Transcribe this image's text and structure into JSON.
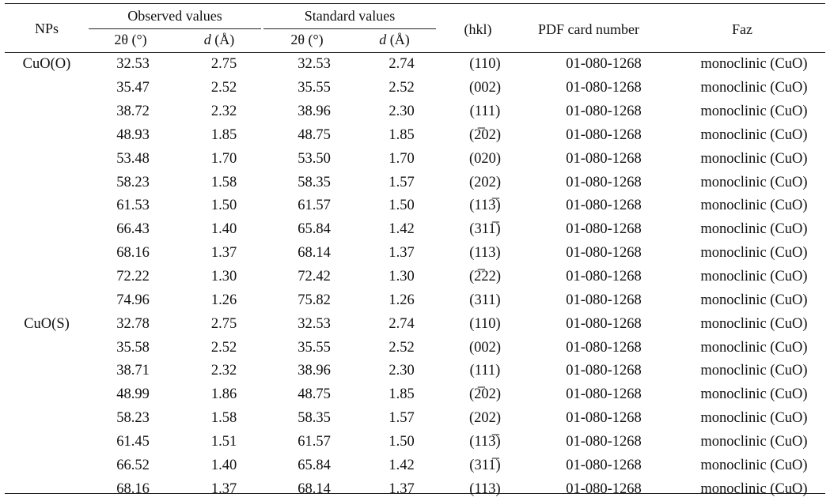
{
  "header": {
    "nps": "NPs",
    "observed": "Observed values",
    "standard": "Standard values",
    "obs_two_theta": "2θ (°)",
    "obs_d_letter": "d",
    "obs_d_unit": " (Å)",
    "std_two_theta": "2θ (°)",
    "std_d_letter": "d",
    "std_d_unit": " (Å)",
    "hkl": "(hkl)",
    "pdf": "PDF card number",
    "faz": "Faz"
  },
  "rows": [
    {
      "np": "CuO(O)",
      "obs_2t": "32.53",
      "obs_d": "2.75",
      "std_2t": "32.53",
      "std_d": "2.74",
      "hkl": "(110)",
      "pdf": "01-080-1268",
      "faz": "monoclinic (CuO)"
    },
    {
      "np": "",
      "obs_2t": "35.47",
      "obs_d": "2.52",
      "std_2t": "35.55",
      "std_d": "2.52",
      "hkl": "(002)",
      "pdf": "01-080-1268",
      "faz": "monoclinic (CuO)"
    },
    {
      "np": "",
      "obs_2t": "38.72",
      "obs_d": "2.32",
      "std_2t": "38.96",
      "std_d": "2.30",
      "hkl": "(111)",
      "pdf": "01-080-1268",
      "faz": "monoclinic (CuO)"
    },
    {
      "np": "",
      "obs_2t": "48.93",
      "obs_d": "1.85",
      "std_2t": "48.75",
      "std_d": "1.85",
      "hkl": "(2̅02)",
      "pdf": "01-080-1268",
      "faz": "monoclinic (CuO)"
    },
    {
      "np": "",
      "obs_2t": "53.48",
      "obs_d": "1.70",
      "std_2t": "53.50",
      "std_d": "1.70",
      "hkl": "(020)",
      "pdf": "01-080-1268",
      "faz": "monoclinic (CuO)"
    },
    {
      "np": "",
      "obs_2t": "58.23",
      "obs_d": "1.58",
      "std_2t": "58.35",
      "std_d": "1.57",
      "hkl": "(202)",
      "pdf": "01-080-1268",
      "faz": "monoclinic (CuO)"
    },
    {
      "np": "",
      "obs_2t": "61.53",
      "obs_d": "1.50",
      "std_2t": "61.57",
      "std_d": "1.50",
      "hkl": "(113̅)",
      "pdf": "01-080-1268",
      "faz": "monoclinic (CuO)"
    },
    {
      "np": "",
      "obs_2t": "66.43",
      "obs_d": "1.40",
      "std_2t": "65.84",
      "std_d": "1.42",
      "hkl": "(311̅)",
      "pdf": "01-080-1268",
      "faz": "monoclinic (CuO)"
    },
    {
      "np": "",
      "obs_2t": "68.16",
      "obs_d": "1.37",
      "std_2t": "68.14",
      "std_d": "1.37",
      "hkl": "(113)",
      "pdf": "01-080-1268",
      "faz": "monoclinic (CuO)"
    },
    {
      "np": "",
      "obs_2t": "72.22",
      "obs_d": "1.30",
      "std_2t": "72.42",
      "std_d": "1.30",
      "hkl": "(2̅22)",
      "pdf": "01-080-1268",
      "faz": "monoclinic (CuO)"
    },
    {
      "np": "",
      "obs_2t": "74.96",
      "obs_d": "1.26",
      "std_2t": "75.82",
      "std_d": "1.26",
      "hkl": "(311)",
      "pdf": "01-080-1268",
      "faz": "monoclinic (CuO)"
    },
    {
      "np": "CuO(S)",
      "obs_2t": "32.78",
      "obs_d": "2.75",
      "std_2t": "32.53",
      "std_d": "2.74",
      "hkl": "(110)",
      "pdf": "01-080-1268",
      "faz": "monoclinic (CuO)"
    },
    {
      "np": "",
      "obs_2t": "35.58",
      "obs_d": "2.52",
      "std_2t": "35.55",
      "std_d": "2.52",
      "hkl": "(002)",
      "pdf": "01-080-1268",
      "faz": "monoclinic (CuO)"
    },
    {
      "np": "",
      "obs_2t": "38.71",
      "obs_d": "2.32",
      "std_2t": "38.96",
      "std_d": "2.30",
      "hkl": "(111)",
      "pdf": "01-080-1268",
      "faz": "monoclinic (CuO)"
    },
    {
      "np": "",
      "obs_2t": "48.99",
      "obs_d": "1.86",
      "std_2t": "48.75",
      "std_d": "1.85",
      "hkl": "(2̅02)",
      "pdf": "01-080-1268",
      "faz": "monoclinic (CuO)"
    },
    {
      "np": "",
      "obs_2t": "58.23",
      "obs_d": "1.58",
      "std_2t": "58.35",
      "std_d": "1.57",
      "hkl": "(202)",
      "pdf": "01-080-1268",
      "faz": "monoclinic (CuO)"
    },
    {
      "np": "",
      "obs_2t": "61.45",
      "obs_d": "1.51",
      "std_2t": "61.57",
      "std_d": "1.50",
      "hkl": "(113̅)",
      "pdf": "01-080-1268",
      "faz": "monoclinic (CuO)"
    },
    {
      "np": "",
      "obs_2t": "66.52",
      "obs_d": "1.40",
      "std_2t": "65.84",
      "std_d": "1.42",
      "hkl": "(311̅)",
      "pdf": "01-080-1268",
      "faz": "monoclinic (CuO)"
    },
    {
      "np": "",
      "obs_2t": "68.16",
      "obs_d": "1.37",
      "std_2t": "68.14",
      "std_d": "1.37",
      "hkl": "(113)",
      "pdf": "01-080-1268",
      "faz": "monoclinic (CuO)"
    }
  ]
}
